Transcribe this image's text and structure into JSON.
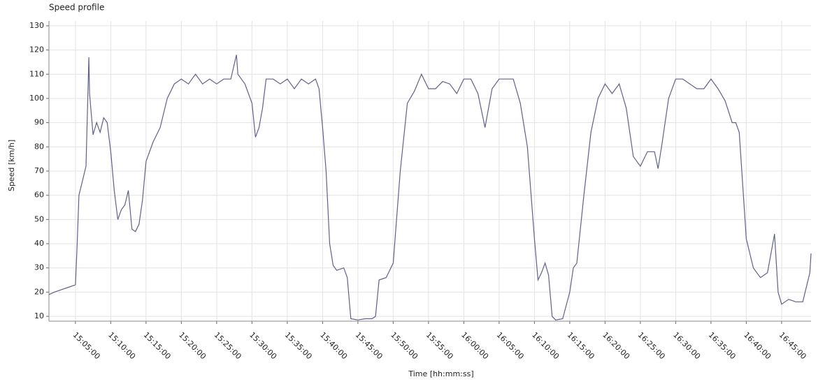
{
  "chart_data": {
    "type": "line",
    "title": "Speed profile",
    "xlabel": "Time  [hh:mm:ss]",
    "ylabel": "Speed [km/h]",
    "x": [
      "15:01:15",
      "15:02:00",
      "15:03:00",
      "15:04:00",
      "15:05:00",
      "15:05:15",
      "15:05:30",
      "15:06:00",
      "15:06:30",
      "15:06:54",
      "15:07:00",
      "15:07:30",
      "15:08:00",
      "15:08:30",
      "15:09:00",
      "15:09:30",
      "15:10:00",
      "15:10:30",
      "15:11:00",
      "15:11:30",
      "15:12:00",
      "15:12:30",
      "15:13:00",
      "15:13:30",
      "15:14:00",
      "15:14:30",
      "15:15:00",
      "15:16:00",
      "15:17:00",
      "15:18:00",
      "15:19:00",
      "15:20:00",
      "15:21:00",
      "15:22:00",
      "15:23:00",
      "15:24:00",
      "15:25:00",
      "15:26:00",
      "15:27:00",
      "15:27:48",
      "15:28:00",
      "15:29:00",
      "15:30:00",
      "15:30:30",
      "15:31:00",
      "15:31:30",
      "15:32:00",
      "15:33:00",
      "15:34:00",
      "15:35:00",
      "15:36:00",
      "15:37:00",
      "15:38:00",
      "15:39:00",
      "15:39:30",
      "15:40:00",
      "15:40:30",
      "15:41:00",
      "15:41:30",
      "15:42:00",
      "15:43:00",
      "15:43:30",
      "15:44:00",
      "15:45:00",
      "15:46:00",
      "15:47:00",
      "15:47:30",
      "15:48:00",
      "15:49:00",
      "15:50:00",
      "15:51:00",
      "15:52:00",
      "15:53:00",
      "15:54:00",
      "15:55:00",
      "15:56:00",
      "15:57:00",
      "15:58:00",
      "15:59:00",
      "16:00:00",
      "16:01:00",
      "16:02:00",
      "16:03:00",
      "16:04:00",
      "16:05:00",
      "16:06:00",
      "16:07:00",
      "16:08:00",
      "16:09:00",
      "16:10:00",
      "16:10:30",
      "16:11:00",
      "16:11:30",
      "16:12:00",
      "16:12:30",
      "16:13:00",
      "16:14:00",
      "16:15:00",
      "16:15:30",
      "16:16:00",
      "16:17:00",
      "16:18:00",
      "16:19:00",
      "16:20:00",
      "16:21:00",
      "16:22:00",
      "16:23:00",
      "16:24:00",
      "16:25:00",
      "16:26:00",
      "16:27:00",
      "16:27:30",
      "16:28:00",
      "16:29:00",
      "16:30:00",
      "16:31:00",
      "16:32:00",
      "16:33:00",
      "16:34:00",
      "16:35:00",
      "16:36:00",
      "16:37:00",
      "16:38:00",
      "16:38:30",
      "16:39:00",
      "16:40:00",
      "16:41:00",
      "16:42:00",
      "16:43:00",
      "16:44:00",
      "16:44:30",
      "16:45:00",
      "16:46:00",
      "16:47:00",
      "16:48:00",
      "16:49:00",
      "16:49:10"
    ],
    "series": [
      {
        "name": "Speed",
        "color": "#60608a",
        "values": [
          19,
          20,
          21,
          22,
          23,
          40,
          60,
          66,
          72,
          117,
          102,
          85,
          90,
          86,
          92,
          90,
          78,
          62,
          50,
          54,
          56,
          62,
          46,
          45,
          48,
          58,
          74,
          82,
          88,
          100,
          106,
          108,
          106,
          110,
          106,
          108,
          106,
          108,
          108,
          118,
          110,
          106,
          98,
          84,
          88,
          96,
          108,
          108,
          106,
          108,
          104,
          108,
          106,
          108,
          104,
          88,
          70,
          40,
          31,
          29,
          30,
          26,
          9,
          8.5,
          9,
          9,
          10,
          25,
          26,
          32,
          70,
          98,
          103,
          110,
          104,
          104,
          107,
          106,
          102,
          108,
          108,
          102,
          88,
          104,
          108,
          108,
          108,
          98,
          80,
          42,
          25,
          28,
          32,
          27,
          10,
          8.5,
          9,
          20,
          30,
          32,
          60,
          86,
          100,
          106,
          102,
          106,
          96,
          76,
          72,
          78,
          78,
          71,
          80,
          100,
          108,
          108,
          106,
          104,
          104,
          108,
          104,
          99,
          90,
          90,
          86,
          42,
          30,
          26,
          28,
          44,
          20,
          15,
          17,
          16,
          16,
          28,
          36
        ]
      }
    ],
    "xlim": [
      "15:01:15",
      "16:49:10"
    ],
    "xticks": [
      "15:05:00",
      "15:10:00",
      "15:15:00",
      "15:20:00",
      "15:25:00",
      "15:30:00",
      "15:35:00",
      "15:40:00",
      "15:45:00",
      "15:50:00",
      "15:55:00",
      "16:00:00",
      "16:05:00",
      "16:10:00",
      "16:15:00",
      "16:20:00",
      "16:25:00",
      "16:30:00",
      "16:35:00",
      "16:40:00",
      "16:45:00"
    ],
    "ylim": [
      8,
      132
    ],
    "yticks": [
      10,
      20,
      30,
      40,
      50,
      60,
      70,
      80,
      90,
      100,
      110,
      120,
      130
    ],
    "grid": true
  }
}
